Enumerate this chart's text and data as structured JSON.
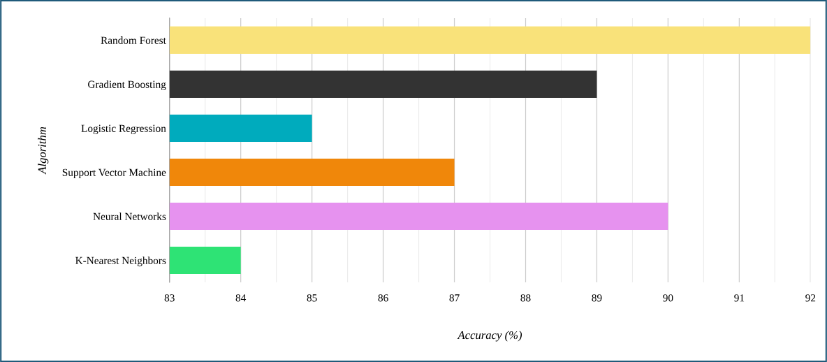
{
  "chart_data": {
    "type": "bar",
    "orientation": "horizontal",
    "xlabel": "Accuracy (%)",
    "ylabel": "Algorithm",
    "categories": [
      "Random Forest",
      "Gradient Boosting",
      "Logistic Regression",
      "Support Vector Machine",
      "Neural Networks",
      "K-Nearest Neighbors"
    ],
    "values": [
      92,
      89,
      85,
      87,
      90,
      84
    ],
    "colors": [
      "#f9e27a",
      "#333333",
      "#00abbd",
      "#f0870a",
      "#e692ef",
      "#2ee375"
    ],
    "xlim": [
      83,
      92
    ],
    "xticks": [
      83,
      84,
      85,
      86,
      87,
      88,
      89,
      90,
      91,
      92
    ],
    "grid": "x"
  }
}
